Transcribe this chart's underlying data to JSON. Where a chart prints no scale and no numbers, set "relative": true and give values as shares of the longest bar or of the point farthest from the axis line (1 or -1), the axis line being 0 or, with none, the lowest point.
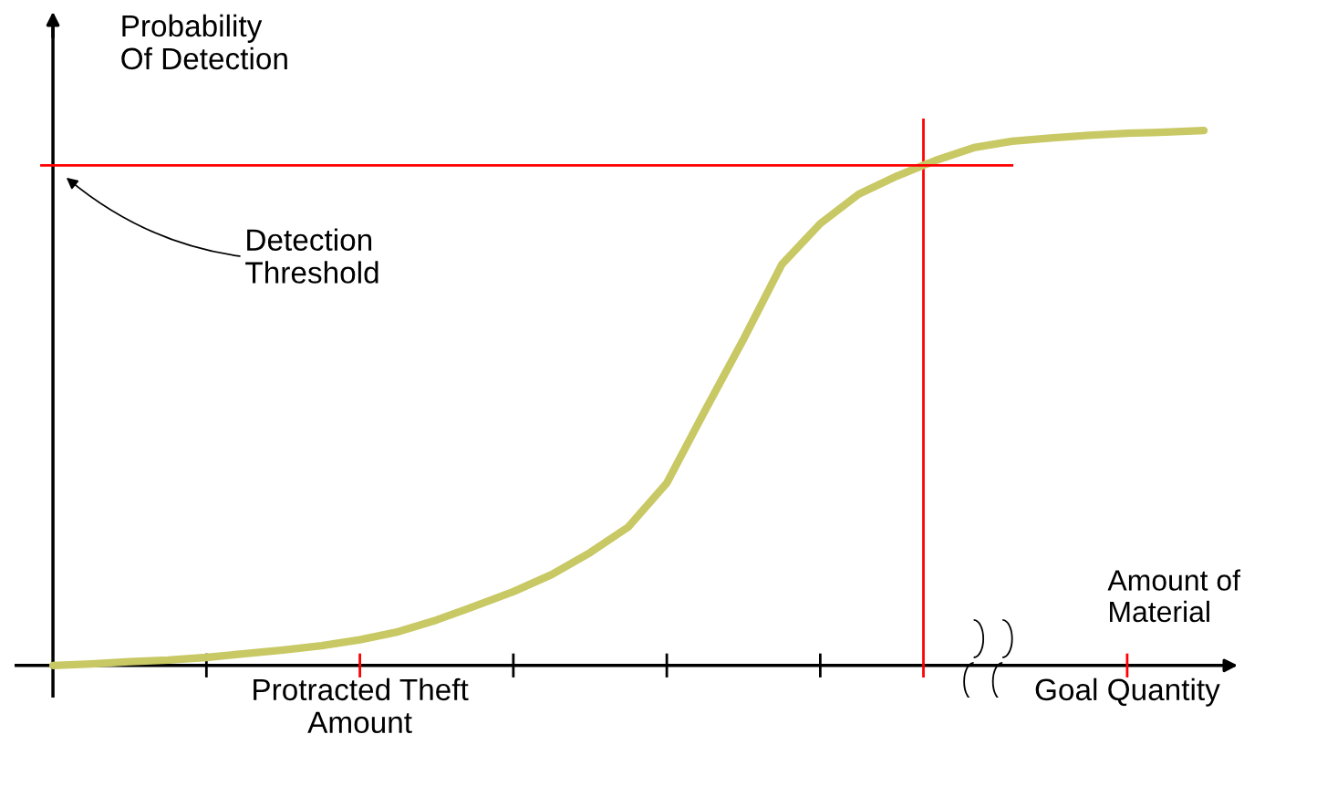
{
  "chart_data": {
    "type": "line",
    "relative": true,
    "xlabel": "Amount of\nMaterial",
    "ylabel": "Probability\nOf Detection",
    "categories": [
      null,
      null,
      null,
      null,
      null,
      null,
      null,
      null,
      "Protracted Theft\nAmount",
      null,
      null,
      null,
      null,
      null,
      null,
      null,
      null,
      null,
      null,
      null,
      null,
      null,
      null,
      null,
      null,
      null,
      null,
      null,
      "Goal Quantity",
      null,
      null
    ],
    "series": [
      {
        "color": "#c8c864",
        "values": [
          0,
          0.003,
          0.007,
          0.01,
          0.015,
          0.022,
          0.029,
          0.037,
          0.048,
          0.063,
          0.085,
          0.111,
          0.138,
          0.17,
          0.211,
          0.259,
          0.341,
          0.477,
          0.61,
          0.75,
          0.826,
          0.881,
          0.915,
          0.944,
          0.968,
          0.98,
          0.986,
          0.991,
          0.995,
          0.997,
          1.0
        ]
      }
    ],
    "ref_lines": [
      {
        "axis": "y",
        "value": 0.935,
        "label": "Detection\nThreshold",
        "color": "#ff0000"
      }
    ],
    "grid": false,
    "legend": false,
    "marker": "none",
    "line_style": "solid"
  }
}
